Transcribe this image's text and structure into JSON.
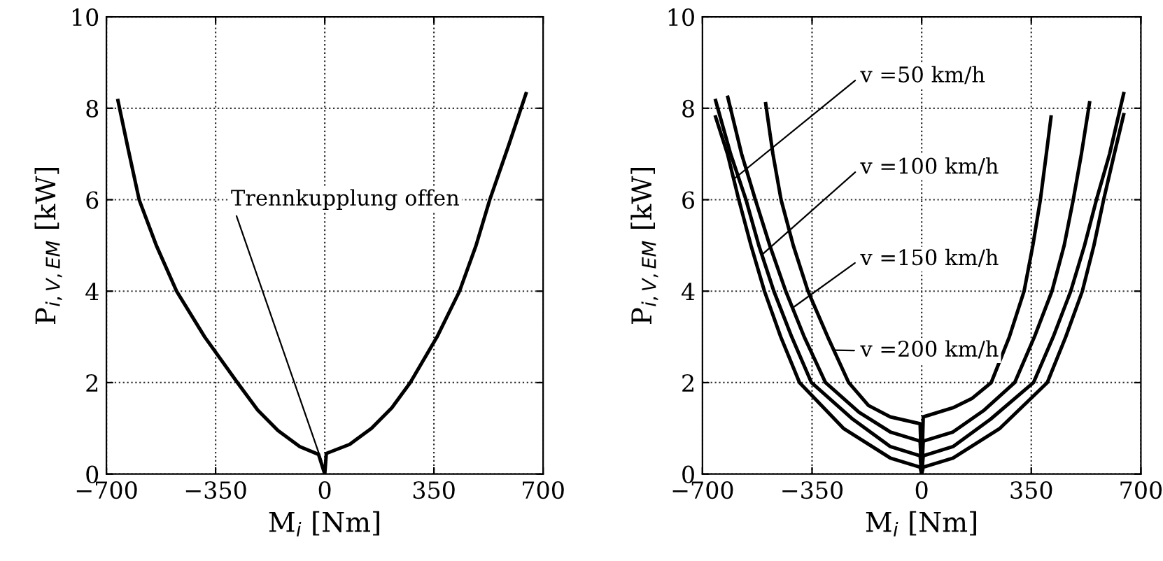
{
  "chart_data": [
    {
      "type": "line",
      "xlabel": "M$_{i}$ [Nm]",
      "ylabel": "P$_{i,V,EM}$ [kW]",
      "xlim": [
        -700,
        700
      ],
      "ylim": [
        0,
        10
      ],
      "xticks": [
        -700,
        -350,
        0,
        350,
        700
      ],
      "yticks": [
        0,
        2,
        4,
        6,
        8,
        10
      ],
      "grid": true,
      "series": [
        {
          "color": "#000000",
          "x": [
            -663,
            -630,
            -595,
            -540,
            -475,
            -385,
            -280,
            -215,
            -150,
            -80,
            -20,
            0,
            5,
            80,
            150,
            215,
            274,
            360,
            432,
            485,
            529,
            590,
            645
          ],
          "values": [
            8.17,
            7.1,
            6,
            5,
            4,
            3,
            2,
            1.4,
            0.95,
            0.6,
            0.43,
            0,
            0.45,
            0.65,
            1.0,
            1.45,
            2,
            3,
            4,
            5,
            6,
            7.2,
            8.32
          ]
        }
      ],
      "annotations": [
        {
          "text": "Trennkupplung offen",
          "x": -10,
          "y": 0.28
        }
      ]
    },
    {
      "type": "line",
      "xlabel": "M$_{i}$ [Nm]",
      "ylabel": "P$_{i,V,EM}$ [kW]",
      "xlim": [
        -700,
        700
      ],
      "ylim": [
        0,
        10
      ],
      "xticks": [
        -700,
        -350,
        0,
        350,
        700
      ],
      "yticks": [
        0,
        2,
        4,
        6,
        8,
        10
      ],
      "grid": true,
      "series": [
        {
          "color": "#000000",
          "x": [
            -658,
            -620,
            -584,
            -545,
            -502,
            -450,
            -390,
            -250,
            -100,
            -5,
            0,
            5,
            100,
            250,
            401,
            460,
            513,
            550,
            581,
            615,
            645
          ],
          "values": [
            7.81,
            7,
            6,
            5,
            4,
            3,
            2,
            1.0,
            0.35,
            0.15,
            0,
            0.15,
            0.35,
            1.0,
            2,
            3,
            4,
            5,
            6,
            7,
            7.86
          ]
        },
        {
          "color": "#000000",
          "x": [
            -658,
            -610,
            -561,
            -520,
            -472,
            -415,
            -352,
            -220,
            -100,
            -5,
            0,
            5,
            100,
            220,
            357,
            420,
            476,
            520,
            558,
            600,
            645
          ],
          "values": [
            8.17,
            7,
            6,
            5,
            4,
            3,
            2,
            1.2,
            0.6,
            0.4,
            0,
            0.4,
            0.6,
            1.2,
            2,
            3,
            4,
            5,
            6,
            7,
            8.32
          ]
        },
        {
          "color": "#000000",
          "x": [
            -619,
            -575,
            -531,
            -485,
            -434,
            -375,
            -307,
            -200,
            -100,
            -5,
            0,
            5,
            100,
            200,
            297,
            360,
            416,
            455,
            484,
            510,
            536
          ],
          "values": [
            8.24,
            7,
            6,
            5,
            4,
            3,
            2,
            1.35,
            0.92,
            0.72,
            0,
            0.72,
            0.92,
            1.4,
            2,
            3,
            4,
            5,
            6,
            7,
            8.12
          ]
        },
        {
          "color": "#000000",
          "x": [
            -498,
            -475,
            -449,
            -410,
            -363,
            -300,
            -233,
            -170,
            -100,
            -5,
            0,
            5,
            100,
            160,
            222,
            280,
            327,
            355,
            379,
            398,
            413
          ],
          "values": [
            8.1,
            7,
            6,
            5,
            4,
            3,
            2,
            1.5,
            1.25,
            1.1,
            0,
            1.25,
            1.45,
            1.65,
            2,
            3,
            4,
            5,
            6,
            7,
            7.81
          ]
        }
      ],
      "annotations": [
        {
          "text": "v =50 km/h",
          "x": -602,
          "y": 6.44
        },
        {
          "text": "v =100 km/h",
          "x": -508,
          "y": 4.81
        },
        {
          "text": "v =150 km/h",
          "x": -411,
          "y": 3.64
        },
        {
          "text": "v =200 km/h",
          "x": -279,
          "y": 2.71
        }
      ]
    }
  ]
}
